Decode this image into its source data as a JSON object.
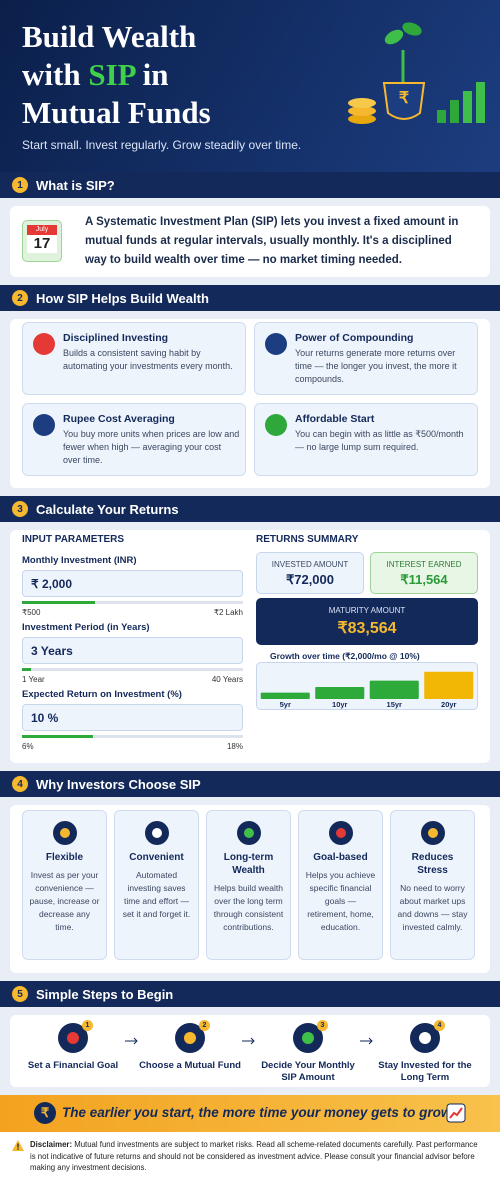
{
  "header": {
    "title": {
      "line1": "Build Wealth",
      "line2_start": "with",
      "line2_highlight": "SIP",
      "line2_end": "in",
      "line3": "Mutual Funds"
    },
    "subtitle": "Start small. Invest regularly. Grow steadily over time.",
    "pot_symbol": "₹"
  },
  "what_is_sip": {
    "number": "1",
    "title": "What is SIP?",
    "calendar": {
      "month": "July",
      "day": "17"
    },
    "text": "A Systematic Investment Plan (SIP) lets you invest a fixed amount in mutual funds at regular intervals, usually monthly. It's a disciplined way to build wealth over time — no market timing needed."
  },
  "benefits": {
    "number": "2",
    "title": "How SIP Helps Build Wealth",
    "items": [
      {
        "title": "Disciplined Investing",
        "text": "Builds a consistent saving habit by automating your investments every month."
      },
      {
        "title": "Power of Compounding",
        "text": "Your returns generate more returns over time — the longer you invest, the more it compounds."
      },
      {
        "title": "Rupee Cost Averaging",
        "text": "You buy more units when prices are low and fewer when high — averaging your cost over time."
      },
      {
        "title": "Affordable Start",
        "text": "You can begin with as little as ₹500/month — no large lump sum required."
      }
    ]
  },
  "calculator": {
    "number": "3",
    "title": "Calculate Your Returns",
    "inputs_title": "INPUT PARAMETERS",
    "fields": [
      {
        "label": "Monthly Investment (INR)",
        "value": "₹ 2,000",
        "min": "₹500",
        "max": "₹2 Lakh"
      },
      {
        "label": "Investment Period (in Years)",
        "value": "3 Years",
        "min": "1 Year",
        "max": "40 Years"
      },
      {
        "label": "Expected Return on Investment (%)",
        "value": "10 %",
        "min": "6%",
        "max": "18%"
      }
    ],
    "summary_title": "RETURNS SUMMARY",
    "invested": {
      "label": "INVESTED AMOUNT",
      "value": "₹72,000"
    },
    "interest": {
      "label": "INTEREST EARNED",
      "value": "₹11,564"
    },
    "maturity": {
      "label": "MATURITY AMOUNT",
      "value": "₹83,564"
    },
    "growth": {
      "type": "bar",
      "title": "Growth over time (₹2,000/mo @ 10%)",
      "categories": [
        "5yr",
        "10yr",
        "15yr",
        "20yr"
      ],
      "values": [
        8,
        15,
        23,
        34
      ],
      "colors": [
        "#2eaa3a",
        "#2eaa3a",
        "#2eaa3a",
        "#f2b705"
      ],
      "ylim": [
        0,
        40
      ]
    }
  },
  "reasons": {
    "number": "4",
    "title": "Why Investors Choose SIP",
    "items": [
      {
        "title": "Flexible",
        "text": "Invest as per your convenience — pause, increase or decrease any time."
      },
      {
        "title": "Convenient",
        "text": "Automated investing saves time and effort — set it and forget it."
      },
      {
        "title": "Long-term Wealth",
        "text": "Helps build wealth over the long term through consistent contributions."
      },
      {
        "title": "Goal-based",
        "text": "Helps you achieve specific financial goals — retirement, home, education."
      },
      {
        "title": "Reduces Stress",
        "text": "No need to worry about market ups and downs — stay invested calmly."
      }
    ]
  },
  "steps": {
    "number": "5",
    "title": "Simple Steps to Begin",
    "items": [
      {
        "badge": "1",
        "label": "Set a Financial Goal"
      },
      {
        "badge": "2",
        "label": "Choose a Mutual Fund"
      },
      {
        "badge": "3",
        "label": "Decide Your Monthly SIP Amount"
      },
      {
        "badge": "4",
        "label": "Stay Invested for the Long Term"
      }
    ]
  },
  "banner": {
    "symbol": "₹",
    "text": "The earlier you start, the more time your money gets to grow."
  },
  "disclaimer": {
    "label": "Disclaimer:",
    "text": "Mutual fund investments are subject to market risks. Read all scheme-related documents carefully. Past performance is not indicative of future returns and should not be considered as investment advice. Please consult your financial advisor before making any investment decisions."
  }
}
